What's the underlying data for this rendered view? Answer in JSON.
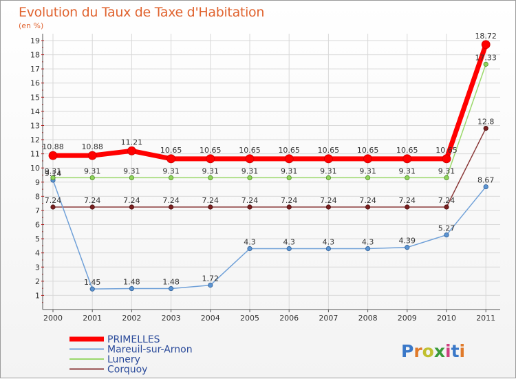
{
  "title": "Evolution du Taux de Taxe d'Habitation",
  "subtitle": "(en %)",
  "brand": "Proxiti",
  "chart_data": {
    "type": "line",
    "x": [
      "2000",
      "2001",
      "2002",
      "2003",
      "2004",
      "2005",
      "2006",
      "2007",
      "2008",
      "2009",
      "2010",
      "2011"
    ],
    "ylim": [
      0,
      19
    ],
    "yticks": [
      1,
      2,
      3,
      4,
      5,
      6,
      7,
      8,
      9,
      10,
      11,
      12,
      13,
      14,
      15,
      16,
      17,
      18,
      19
    ],
    "grid": true,
    "legend_position": "bottom-left",
    "series": [
      {
        "name": "PRIMELLES",
        "color": "#ff0000",
        "labels": [
          "10.88",
          "10.88",
          "11.21",
          "10.65",
          "10.65",
          "10.65",
          "10.65",
          "10.65",
          "10.65",
          "10.65",
          "10.65",
          "18.72"
        ],
        "values": [
          10.88,
          10.88,
          11.21,
          10.65,
          10.65,
          10.65,
          10.65,
          10.65,
          10.65,
          10.65,
          10.65,
          18.72
        ]
      },
      {
        "name": "Mareuil-sur-Arnon",
        "color": "#6fa0d8",
        "labels": [
          "9.14",
          "1.45",
          "1.48",
          "1.48",
          "1.72",
          "4.3",
          "4.3",
          "4.3",
          "4.3",
          "4.39",
          "5.27",
          "8.67"
        ],
        "values": [
          9.14,
          1.45,
          1.48,
          1.48,
          1.72,
          4.3,
          4.3,
          4.3,
          4.3,
          4.39,
          5.27,
          8.67
        ]
      },
      {
        "name": "Lunery",
        "color": "#9ad86a",
        "labels": [
          "9.31",
          "9.31",
          "9.31",
          "9.31",
          "9.31",
          "9.31",
          "9.31",
          "9.31",
          "9.31",
          "9.31",
          "9.31",
          "17.33"
        ],
        "values": [
          9.31,
          9.31,
          9.31,
          9.31,
          9.31,
          9.31,
          9.31,
          9.31,
          9.31,
          9.31,
          9.31,
          17.33
        ]
      },
      {
        "name": "Corquoy",
        "color": "#8b3a3a",
        "labels": [
          "7.24",
          "7.24",
          "7.24",
          "7.24",
          "7.24",
          "7.24",
          "7.24",
          "7.24",
          "7.24",
          "7.24",
          "7.24",
          "12.8"
        ],
        "values": [
          7.24,
          7.24,
          7.24,
          7.24,
          7.24,
          7.24,
          7.24,
          7.24,
          7.24,
          7.24,
          7.24,
          12.8
        ]
      }
    ]
  }
}
